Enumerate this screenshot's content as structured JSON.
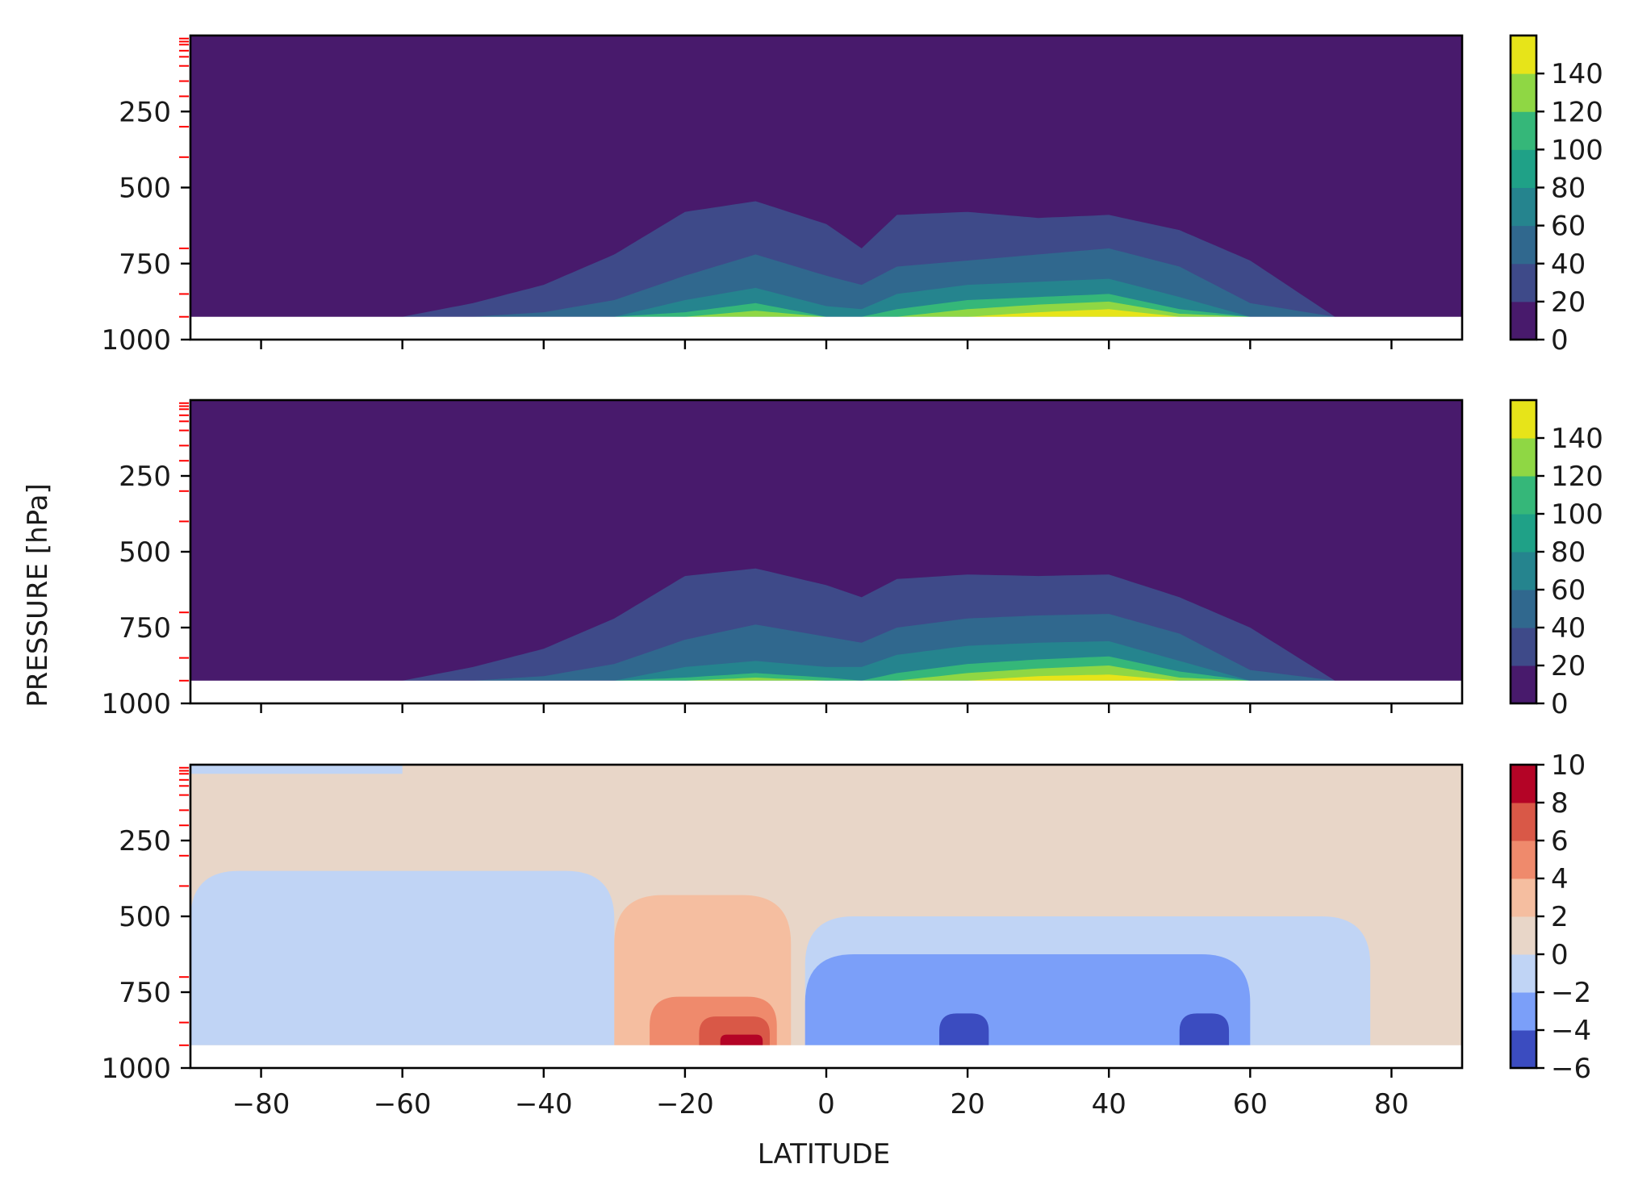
{
  "chart_data": [
    {
      "type": "contourf",
      "panel": "top",
      "xlim": [
        -90,
        90
      ],
      "ylim": [
        1000,
        0
      ],
      "y_scale": "linear, inverted",
      "ylabel": "",
      "xlabel": "",
      "y_ticks": [
        "250",
        "500",
        "750",
        "1000"
      ],
      "x_ticks_labeled": false,
      "colormap": "viridis",
      "colorbar_ticks": [
        "0",
        "20",
        "40",
        "60",
        "80",
        "100",
        "120",
        "140"
      ],
      "levels": [
        0,
        20,
        40,
        60,
        80,
        100,
        120,
        140
      ],
      "level_colors": [
        "#481a6c",
        "#3e4a89",
        "#30688e",
        "#25848e",
        "#1fa187",
        "#35b779",
        "#8fd744",
        "#e7e419"
      ],
      "surface_pressure": 925,
      "contour_upper_boundaries_hPa": {
        "lat": [
          -60,
          -50,
          -40,
          -30,
          -20,
          -10,
          0,
          5,
          10,
          20,
          30,
          40,
          50,
          60,
          72
        ],
        "level_0_top": [
          925,
          880,
          820,
          720,
          580,
          545,
          620,
          700,
          590,
          580,
          600,
          590,
          640,
          740,
          925
        ],
        "level_20_top": [
          925,
          925,
          910,
          870,
          790,
          720,
          790,
          820,
          760,
          740,
          720,
          700,
          760,
          880,
          925
        ],
        "level_40_top": [
          925,
          925,
          925,
          925,
          870,
          830,
          890,
          900,
          850,
          820,
          810,
          800,
          860,
          925,
          925
        ],
        "level_80_top": [
          925,
          925,
          925,
          925,
          910,
          880,
          925,
          925,
          900,
          870,
          860,
          850,
          900,
          925,
          925
        ],
        "level_100_top": [
          925,
          925,
          925,
          925,
          925,
          905,
          925,
          925,
          925,
          900,
          885,
          875,
          915,
          925,
          925
        ],
        "level_120_top": [
          925,
          925,
          925,
          925,
          925,
          925,
          925,
          925,
          925,
          925,
          910,
          900,
          925,
          925,
          925
        ]
      },
      "red_pressure_level_marks_hPa": [
        10,
        20,
        30,
        50,
        70,
        100,
        150,
        200,
        300,
        400,
        700,
        850,
        925
      ]
    },
    {
      "type": "contourf",
      "panel": "middle",
      "xlim": [
        -90,
        90
      ],
      "ylim": [
        1000,
        0
      ],
      "ylabel": "PRESSURE [hPa]",
      "xlabel": "",
      "y_ticks": [
        "250",
        "500",
        "750",
        "1000"
      ],
      "x_ticks_labeled": false,
      "colormap": "viridis",
      "colorbar_ticks": [
        "0",
        "20",
        "40",
        "60",
        "80",
        "100",
        "120",
        "140"
      ],
      "levels": [
        0,
        20,
        40,
        60,
        80,
        100,
        120,
        140
      ],
      "surface_pressure": 925,
      "contour_upper_boundaries_hPa": {
        "lat": [
          -60,
          -50,
          -40,
          -30,
          -20,
          -10,
          0,
          5,
          10,
          20,
          30,
          40,
          50,
          60,
          72
        ],
        "level_0_top": [
          925,
          880,
          820,
          720,
          580,
          555,
          610,
          650,
          590,
          575,
          580,
          575,
          650,
          750,
          925
        ],
        "level_20_top": [
          925,
          925,
          910,
          870,
          790,
          740,
          780,
          800,
          750,
          720,
          710,
          705,
          770,
          890,
          925
        ],
        "level_40_top": [
          925,
          925,
          925,
          925,
          880,
          860,
          880,
          880,
          840,
          810,
          800,
          795,
          860,
          925,
          925
        ],
        "level_80_top": [
          925,
          925,
          925,
          925,
          915,
          900,
          915,
          925,
          900,
          870,
          855,
          845,
          895,
          925,
          925
        ],
        "level_100_top": [
          925,
          925,
          925,
          925,
          925,
          915,
          925,
          925,
          925,
          900,
          885,
          875,
          915,
          925,
          925
        ],
        "level_120_top": [
          925,
          925,
          925,
          925,
          925,
          925,
          925,
          925,
          925,
          925,
          910,
          905,
          925,
          925,
          925
        ]
      },
      "red_pressure_level_marks_hPa": [
        10,
        20,
        30,
        50,
        70,
        100,
        150,
        200,
        300,
        400,
        700,
        850,
        925
      ]
    },
    {
      "type": "contourf",
      "panel": "bottom",
      "xlim": [
        -90,
        90
      ],
      "ylim": [
        1000,
        0
      ],
      "xlabel": "LATITUDE",
      "ylabel": "",
      "x_ticks": [
        "−80",
        "−60",
        "−40",
        "−20",
        "0",
        "20",
        "40",
        "60",
        "80"
      ],
      "y_ticks": [
        "250",
        "500",
        "750",
        "1000"
      ],
      "colormap": "coolwarm",
      "colorbar_ticks": [
        "−6",
        "−4",
        "−2",
        "0",
        "2",
        "4",
        "6",
        "8",
        "10"
      ],
      "levels": [
        -6,
        -4,
        -2,
        0,
        2,
        4,
        6,
        8,
        10
      ],
      "level_colors": [
        "#3b4cc0",
        "#7b9ff9",
        "#c0d4f5",
        "#e8d6c8",
        "#f5bea0",
        "#ef8a6c",
        "#d95847",
        "#b40426"
      ],
      "background_level": [
        0,
        2
      ],
      "surface_pressure": 925,
      "regions": [
        {
          "range": [
            -2,
            0
          ],
          "lat": [
            -90,
            -30
          ],
          "p": [
            350,
            925
          ]
        },
        {
          "range": [
            -2,
            0
          ],
          "lat": [
            -3,
            77
          ],
          "p": [
            500,
            925
          ]
        },
        {
          "range": [
            -4,
            -2
          ],
          "lat": [
            -3,
            60
          ],
          "p": [
            625,
            925
          ]
        },
        {
          "range": [
            -6,
            -4
          ],
          "lat": [
            16,
            23
          ],
          "p": [
            820,
            925
          ]
        },
        {
          "range": [
            -6,
            -4
          ],
          "lat": [
            50,
            57
          ],
          "p": [
            820,
            925
          ]
        },
        {
          "range": [
            2,
            4
          ],
          "lat": [
            -30,
            -5
          ],
          "p": [
            430,
            925
          ]
        },
        {
          "range": [
            4,
            6
          ],
          "lat": [
            -25,
            -7
          ],
          "p": [
            765,
            925
          ]
        },
        {
          "range": [
            6,
            8
          ],
          "lat": [
            -18,
            -8
          ],
          "p": [
            830,
            925
          ]
        },
        {
          "range": [
            8,
            10
          ],
          "lat": [
            -15,
            -9
          ],
          "p": [
            890,
            925
          ]
        }
      ],
      "red_pressure_level_marks_hPa": [
        10,
        20,
        30,
        50,
        70,
        100,
        150,
        200,
        300,
        400,
        700,
        850,
        925
      ]
    }
  ]
}
